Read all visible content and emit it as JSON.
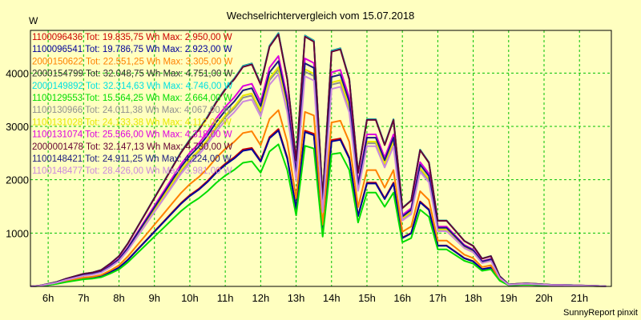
{
  "chart_data": {
    "type": "line",
    "title": "Wechselrichtervergleich vom 15.07.2018",
    "ylabel": "W",
    "xlabel": "",
    "footer": "SunnyReport pinxit",
    "xlim": [
      5.5,
      21.9
    ],
    "ylim": [
      0,
      4800
    ],
    "y_ticks": [
      1000,
      2000,
      3000,
      4000
    ],
    "x_ticks": [
      6,
      7,
      8,
      9,
      10,
      11,
      12,
      13,
      14,
      15,
      16,
      17,
      18,
      19,
      20,
      21
    ],
    "x_tick_labels": [
      "6h",
      "7h",
      "8h",
      "9h",
      "10h",
      "11h",
      "12h",
      "13h",
      "14h",
      "15h",
      "16h",
      "17h",
      "18h",
      "19h",
      "20h",
      "21h"
    ],
    "grid": true,
    "legend_position": "top-left",
    "x": [
      5.5,
      5.75,
      6.0,
      6.25,
      6.5,
      6.75,
      7.0,
      7.25,
      7.5,
      7.75,
      8.0,
      8.25,
      8.5,
      8.75,
      9.0,
      9.25,
      9.5,
      9.75,
      10.0,
      10.25,
      10.5,
      10.75,
      11.0,
      11.25,
      11.5,
      11.75,
      12.0,
      12.25,
      12.5,
      12.75,
      13.0,
      13.25,
      13.5,
      13.75,
      14.0,
      14.25,
      14.5,
      14.75,
      15.0,
      15.25,
      15.5,
      15.75,
      16.0,
      16.25,
      16.5,
      16.75,
      17.0,
      17.25,
      17.5,
      17.75,
      18.0,
      18.25,
      18.5,
      18.75,
      19.0,
      19.25,
      19.5,
      19.75,
      20.0,
      20.25,
      20.5,
      20.75,
      21.0,
      21.25,
      21.5,
      21.75
    ],
    "series": [
      {
        "name": "1100096436",
        "color": "#cc0000",
        "legend": "1100096436 Tot: 19.835,75 Wh Max: 2.950,00 W",
        "shape": [
          0,
          0.003,
          0.01,
          0.018,
          0.03,
          0.04,
          0.05,
          0.055,
          0.065,
          0.09,
          0.12,
          0.17,
          0.23,
          0.29,
          0.35,
          0.41,
          0.47,
          0.53,
          0.58,
          0.62,
          0.67,
          0.73,
          0.78,
          0.82,
          0.87,
          0.88,
          0.8,
          0.95,
          1.0,
          0.82,
          0.5,
          0.99,
          0.97,
          0.35,
          0.93,
          0.94,
          0.82,
          0.45,
          0.66,
          0.66,
          0.56,
          0.66,
          0.31,
          0.34,
          0.54,
          0.49,
          0.26,
          0.26,
          0.22,
          0.18,
          0.16,
          0.11,
          0.12,
          0.04,
          0.008,
          0.01,
          0.012,
          0.01,
          0.008,
          0.006,
          0.006,
          0.005,
          0.004,
          0.003,
          0.002,
          0.001
        ]
      },
      {
        "name": "1100096541",
        "color": "#000099",
        "legend": "1100096541 Tot: 19.786,75 Wh Max: 2.923,00 W",
        "shape": [
          0,
          0.003,
          0.01,
          0.018,
          0.03,
          0.04,
          0.05,
          0.055,
          0.065,
          0.09,
          0.12,
          0.17,
          0.23,
          0.29,
          0.35,
          0.41,
          0.47,
          0.53,
          0.58,
          0.62,
          0.67,
          0.73,
          0.78,
          0.82,
          0.87,
          0.88,
          0.8,
          0.95,
          1.0,
          0.82,
          0.5,
          0.99,
          0.97,
          0.35,
          0.93,
          0.94,
          0.82,
          0.45,
          0.66,
          0.66,
          0.56,
          0.66,
          0.31,
          0.34,
          0.54,
          0.49,
          0.26,
          0.26,
          0.22,
          0.18,
          0.16,
          0.11,
          0.12,
          0.04,
          0.008,
          0.01,
          0.012,
          0.01,
          0.008,
          0.006,
          0.006,
          0.005,
          0.004,
          0.003,
          0.002,
          0.001
        ]
      },
      {
        "name": "2000150622",
        "color": "#ff8000",
        "legend": "2000150622 Tot: 22.551,25 Wh Max: 3.305,00 W",
        "shape": [
          0,
          0.003,
          0.01,
          0.018,
          0.03,
          0.04,
          0.05,
          0.055,
          0.065,
          0.09,
          0.12,
          0.17,
          0.23,
          0.29,
          0.35,
          0.41,
          0.47,
          0.53,
          0.58,
          0.62,
          0.67,
          0.73,
          0.78,
          0.82,
          0.87,
          0.88,
          0.8,
          0.95,
          1.0,
          0.82,
          0.5,
          0.99,
          0.97,
          0.35,
          0.93,
          0.94,
          0.82,
          0.45,
          0.66,
          0.66,
          0.56,
          0.66,
          0.31,
          0.34,
          0.54,
          0.49,
          0.26,
          0.26,
          0.22,
          0.18,
          0.16,
          0.11,
          0.12,
          0.04,
          0.008,
          0.01,
          0.012,
          0.01,
          0.008,
          0.006,
          0.006,
          0.005,
          0.004,
          0.003,
          0.002,
          0.001
        ]
      },
      {
        "name": "2000154799",
        "color": "#303030",
        "legend": "2000154799 Tot: 32.048,75 Wh Max: 4.751,00 W",
        "shape": [
          0,
          0.003,
          0.01,
          0.018,
          0.03,
          0.04,
          0.05,
          0.055,
          0.065,
          0.09,
          0.12,
          0.17,
          0.23,
          0.29,
          0.35,
          0.41,
          0.47,
          0.53,
          0.58,
          0.62,
          0.67,
          0.73,
          0.78,
          0.82,
          0.87,
          0.88,
          0.8,
          0.95,
          1.0,
          0.82,
          0.5,
          0.99,
          0.97,
          0.35,
          0.93,
          0.94,
          0.82,
          0.45,
          0.66,
          0.66,
          0.56,
          0.66,
          0.31,
          0.34,
          0.54,
          0.49,
          0.26,
          0.26,
          0.22,
          0.18,
          0.16,
          0.11,
          0.12,
          0.04,
          0.008,
          0.01,
          0.012,
          0.01,
          0.008,
          0.006,
          0.006,
          0.005,
          0.004,
          0.003,
          0.002,
          0.001
        ]
      },
      {
        "name": "2000149892",
        "color": "#00e0e0",
        "legend": "2000149892 Tot: 32.314,63 Wh Max: 4.746,00 W",
        "shape": [
          0,
          0.003,
          0.01,
          0.018,
          0.03,
          0.04,
          0.05,
          0.055,
          0.065,
          0.09,
          0.12,
          0.17,
          0.23,
          0.29,
          0.35,
          0.41,
          0.47,
          0.53,
          0.58,
          0.62,
          0.67,
          0.73,
          0.78,
          0.82,
          0.87,
          0.88,
          0.8,
          0.95,
          1.0,
          0.82,
          0.5,
          0.99,
          0.97,
          0.35,
          0.93,
          0.94,
          0.82,
          0.45,
          0.66,
          0.66,
          0.56,
          0.66,
          0.31,
          0.34,
          0.54,
          0.49,
          0.26,
          0.26,
          0.22,
          0.18,
          0.16,
          0.11,
          0.12,
          0.04,
          0.008,
          0.01,
          0.012,
          0.01,
          0.008,
          0.006,
          0.006,
          0.005,
          0.004,
          0.003,
          0.002,
          0.001
        ]
      },
      {
        "name": "1100129553",
        "color": "#00dd00",
        "legend": "1100129553 Tot: 15.564,25 Wh Max: 2.664,00 W",
        "shape": [
          0,
          0.003,
          0.01,
          0.018,
          0.03,
          0.04,
          0.05,
          0.055,
          0.065,
          0.09,
          0.12,
          0.17,
          0.23,
          0.29,
          0.35,
          0.41,
          0.47,
          0.53,
          0.58,
          0.62,
          0.67,
          0.73,
          0.78,
          0.82,
          0.87,
          0.88,
          0.8,
          0.95,
          1.0,
          0.82,
          0.5,
          0.99,
          0.97,
          0.35,
          0.93,
          0.94,
          0.82,
          0.45,
          0.66,
          0.66,
          0.56,
          0.66,
          0.31,
          0.34,
          0.54,
          0.49,
          0.26,
          0.26,
          0.22,
          0.18,
          0.16,
          0.11,
          0.12,
          0.04,
          0.008,
          0.01,
          0.012,
          0.01,
          0.008,
          0.006,
          0.006,
          0.005,
          0.004,
          0.003,
          0.002,
          0.001
        ]
      },
      {
        "name": "1100130966",
        "color": "#909090",
        "legend": "1100130966 Tot: 24.011,38 Wh Max: 4.067,00 W",
        "shape": [
          0,
          0.003,
          0.01,
          0.018,
          0.03,
          0.04,
          0.05,
          0.055,
          0.065,
          0.09,
          0.12,
          0.17,
          0.23,
          0.29,
          0.35,
          0.41,
          0.47,
          0.53,
          0.58,
          0.62,
          0.67,
          0.73,
          0.78,
          0.82,
          0.87,
          0.88,
          0.8,
          0.95,
          1.0,
          0.82,
          0.5,
          0.99,
          0.97,
          0.35,
          0.93,
          0.94,
          0.82,
          0.45,
          0.66,
          0.66,
          0.56,
          0.66,
          0.31,
          0.34,
          0.54,
          0.49,
          0.26,
          0.26,
          0.22,
          0.18,
          0.16,
          0.11,
          0.12,
          0.04,
          0.008,
          0.01,
          0.012,
          0.01,
          0.008,
          0.006,
          0.006,
          0.005,
          0.004,
          0.003,
          0.002,
          0.001
        ]
      },
      {
        "name": "1100131028",
        "color": "#e8e800",
        "legend": "1100131028 Tot: 24.133,38 Wh Max: 4.112,00 W",
        "shape": [
          0,
          0.003,
          0.01,
          0.018,
          0.03,
          0.04,
          0.05,
          0.055,
          0.065,
          0.09,
          0.12,
          0.17,
          0.23,
          0.29,
          0.35,
          0.41,
          0.47,
          0.53,
          0.58,
          0.62,
          0.67,
          0.73,
          0.78,
          0.82,
          0.87,
          0.88,
          0.8,
          0.95,
          1.0,
          0.82,
          0.5,
          0.99,
          0.97,
          0.35,
          0.93,
          0.94,
          0.82,
          0.45,
          0.66,
          0.66,
          0.56,
          0.66,
          0.31,
          0.34,
          0.54,
          0.49,
          0.26,
          0.26,
          0.22,
          0.18,
          0.16,
          0.11,
          0.12,
          0.04,
          0.008,
          0.01,
          0.012,
          0.01,
          0.008,
          0.006,
          0.006,
          0.005,
          0.004,
          0.003,
          0.002,
          0.001
        ]
      },
      {
        "name": "1100131074",
        "color": "#dd00dd",
        "legend": "1100131074 Tot: 25.566,00 Wh Max: 4.318,00 W",
        "shape": [
          0,
          0.003,
          0.01,
          0.018,
          0.03,
          0.04,
          0.05,
          0.055,
          0.065,
          0.09,
          0.12,
          0.17,
          0.23,
          0.29,
          0.35,
          0.41,
          0.47,
          0.53,
          0.58,
          0.62,
          0.67,
          0.73,
          0.78,
          0.82,
          0.87,
          0.88,
          0.8,
          0.95,
          1.0,
          0.82,
          0.5,
          0.99,
          0.97,
          0.35,
          0.93,
          0.94,
          0.82,
          0.45,
          0.66,
          0.66,
          0.56,
          0.66,
          0.31,
          0.34,
          0.54,
          0.49,
          0.26,
          0.26,
          0.22,
          0.18,
          0.16,
          0.11,
          0.12,
          0.04,
          0.008,
          0.01,
          0.012,
          0.01,
          0.008,
          0.006,
          0.006,
          0.005,
          0.004,
          0.003,
          0.002,
          0.001
        ]
      },
      {
        "name": "2000001478",
        "color": "#660033",
        "legend": "2000001478 Tot: 32.147,13 Wh Max: 4.730,00 W",
        "shape": [
          0,
          0.003,
          0.01,
          0.018,
          0.03,
          0.04,
          0.05,
          0.055,
          0.065,
          0.09,
          0.12,
          0.17,
          0.23,
          0.29,
          0.35,
          0.41,
          0.47,
          0.53,
          0.58,
          0.62,
          0.67,
          0.73,
          0.78,
          0.82,
          0.87,
          0.88,
          0.8,
          0.95,
          1.0,
          0.82,
          0.5,
          0.99,
          0.97,
          0.35,
          0.93,
          0.94,
          0.82,
          0.45,
          0.66,
          0.66,
          0.56,
          0.66,
          0.31,
          0.34,
          0.54,
          0.49,
          0.26,
          0.26,
          0.22,
          0.18,
          0.16,
          0.11,
          0.12,
          0.04,
          0.008,
          0.01,
          0.012,
          0.01,
          0.008,
          0.006,
          0.006,
          0.005,
          0.004,
          0.003,
          0.002,
          0.001
        ]
      },
      {
        "name": "1100148421",
        "color": "#1a1a80",
        "legend": "1100148421 Tot: 24.911,25 Wh Max: 4.224,00 W",
        "shape": [
          0,
          0.003,
          0.01,
          0.018,
          0.03,
          0.04,
          0.05,
          0.055,
          0.065,
          0.09,
          0.12,
          0.17,
          0.23,
          0.29,
          0.35,
          0.41,
          0.47,
          0.53,
          0.58,
          0.62,
          0.67,
          0.73,
          0.78,
          0.82,
          0.87,
          0.88,
          0.8,
          0.95,
          1.0,
          0.82,
          0.5,
          0.99,
          0.97,
          0.35,
          0.93,
          0.94,
          0.82,
          0.45,
          0.66,
          0.66,
          0.56,
          0.66,
          0.31,
          0.34,
          0.54,
          0.49,
          0.26,
          0.26,
          0.22,
          0.18,
          0.16,
          0.11,
          0.12,
          0.04,
          0.008,
          0.01,
          0.012,
          0.01,
          0.008,
          0.006,
          0.006,
          0.005,
          0.004,
          0.003,
          0.002,
          0.001
        ]
      },
      {
        "name": "1100148477",
        "color": "#cc88dd",
        "legend": "1100148477 Tot: 28.426,00 Wh Max: 3.981,00 W",
        "shape": [
          0,
          0.003,
          0.01,
          0.018,
          0.03,
          0.04,
          0.05,
          0.055,
          0.065,
          0.09,
          0.12,
          0.17,
          0.23,
          0.29,
          0.35,
          0.41,
          0.47,
          0.53,
          0.58,
          0.62,
          0.67,
          0.73,
          0.78,
          0.82,
          0.87,
          0.88,
          0.8,
          0.95,
          1.0,
          0.82,
          0.5,
          0.99,
          0.97,
          0.35,
          0.93,
          0.94,
          0.82,
          0.45,
          0.66,
          0.66,
          0.56,
          0.66,
          0.31,
          0.34,
          0.54,
          0.49,
          0.26,
          0.26,
          0.22,
          0.18,
          0.16,
          0.11,
          0.12,
          0.04,
          0.008,
          0.01,
          0.012,
          0.01,
          0.008,
          0.006,
          0.006,
          0.005,
          0.004,
          0.003,
          0.002,
          0.001
        ]
      }
    ]
  }
}
